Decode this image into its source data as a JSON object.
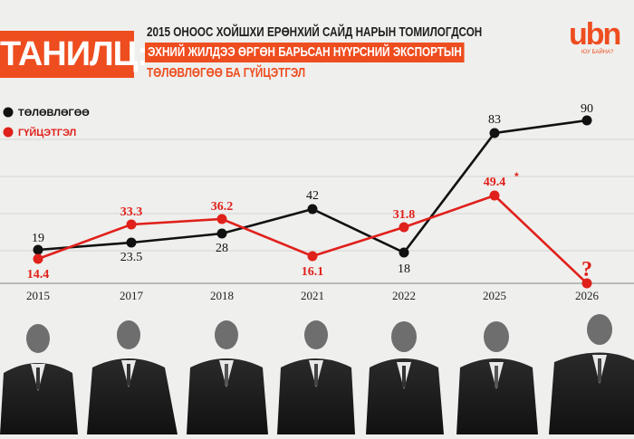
{
  "header": {
    "badge": "ТАНИЛЦ:",
    "line1": "2015 ОНООС ХОЙШХИ ЕРӨНХИЙ САЙД НАРЫН ТОМИЛОГДСОН",
    "line2": "ЭХНИЙ ЖИЛДЭЭ ӨРГӨН БАРЬСАН НҮҮРСНИЙ ЭКСПОРТЫН",
    "line3": "ТӨЛӨВЛӨГӨӨ БА ГҮЙЦЭТГЭЛ"
  },
  "logo": {
    "text": "ubn",
    "sub": "ЮУ БАЙНА?"
  },
  "colors": {
    "accent": "#ee4d1f",
    "plan": "#111111",
    "actual": "#e0201b"
  },
  "chart_data": {
    "type": "line",
    "categories": [
      "2015",
      "2017",
      "2018",
      "2021",
      "2022",
      "2025",
      "2026"
    ],
    "series": [
      {
        "name": "ТӨЛӨВЛӨГӨӨ",
        "values": [
          19,
          23.5,
          28,
          42,
          18,
          83,
          90
        ],
        "labels": [
          "19",
          "23.5",
          "28",
          "42",
          "18",
          "83",
          "90"
        ]
      },
      {
        "name": "ГҮЙЦЭТГЭЛ",
        "values": [
          14.4,
          33.3,
          36.2,
          16.1,
          31.8,
          49.4,
          0
        ],
        "labels": [
          "14.4",
          "33.3",
          "36.2",
          "16.1",
          "31.8",
          "49.4",
          "?"
        ],
        "annotations": {
          "49.4": "*"
        }
      }
    ],
    "ylim": [
      0,
      100
    ],
    "grid": true,
    "legend_position": "top-left"
  }
}
